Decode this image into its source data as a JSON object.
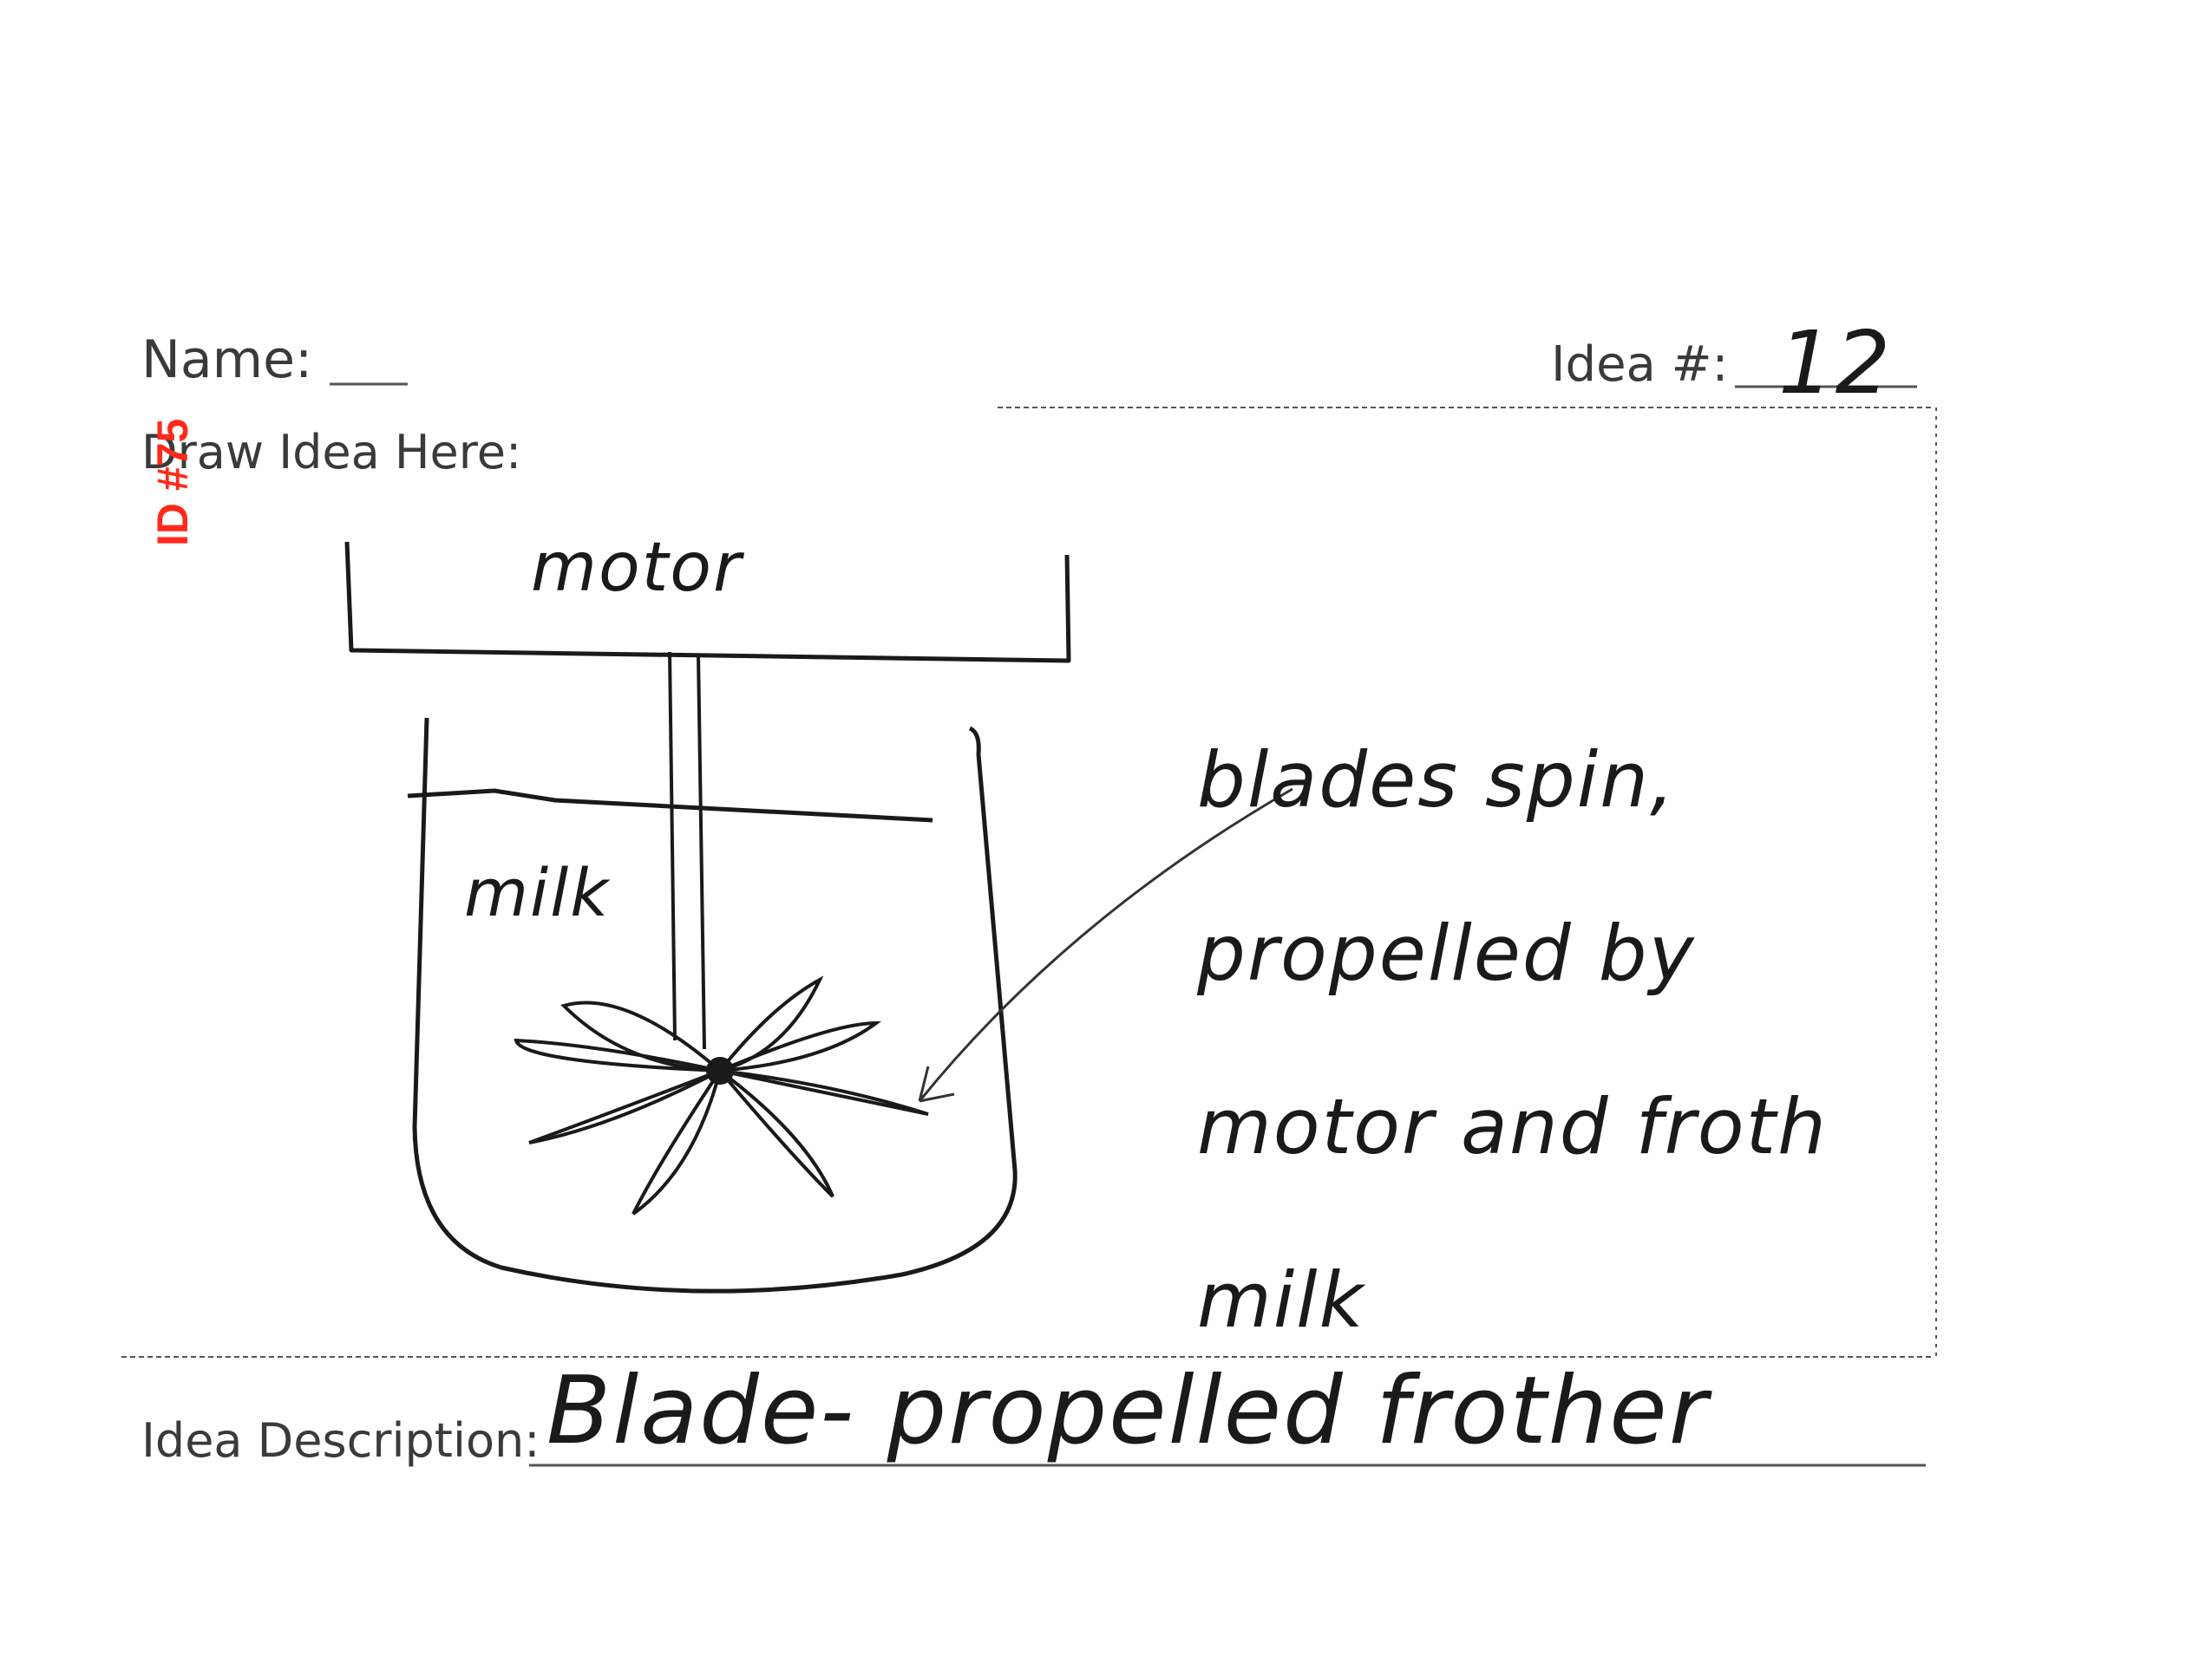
{
  "form": {
    "name_label": "Name:",
    "idea_number_label": "Idea #:",
    "idea_number_value": "12",
    "draw_label": "Draw Idea Here:",
    "description_label": "Idea Description:",
    "description_value": "Blade- propelled frother"
  },
  "sketch": {
    "motor_label": "motor",
    "milk_label": "milk",
    "annotation_lines": [
      "blades spin,",
      "propelled by",
      "motor and froth",
      "milk"
    ]
  },
  "stamp": {
    "text": "ID #75"
  },
  "colors": {
    "stamp": "#ff2a1a",
    "ink": "#1a1a1a",
    "print": "#3a3a3a"
  }
}
